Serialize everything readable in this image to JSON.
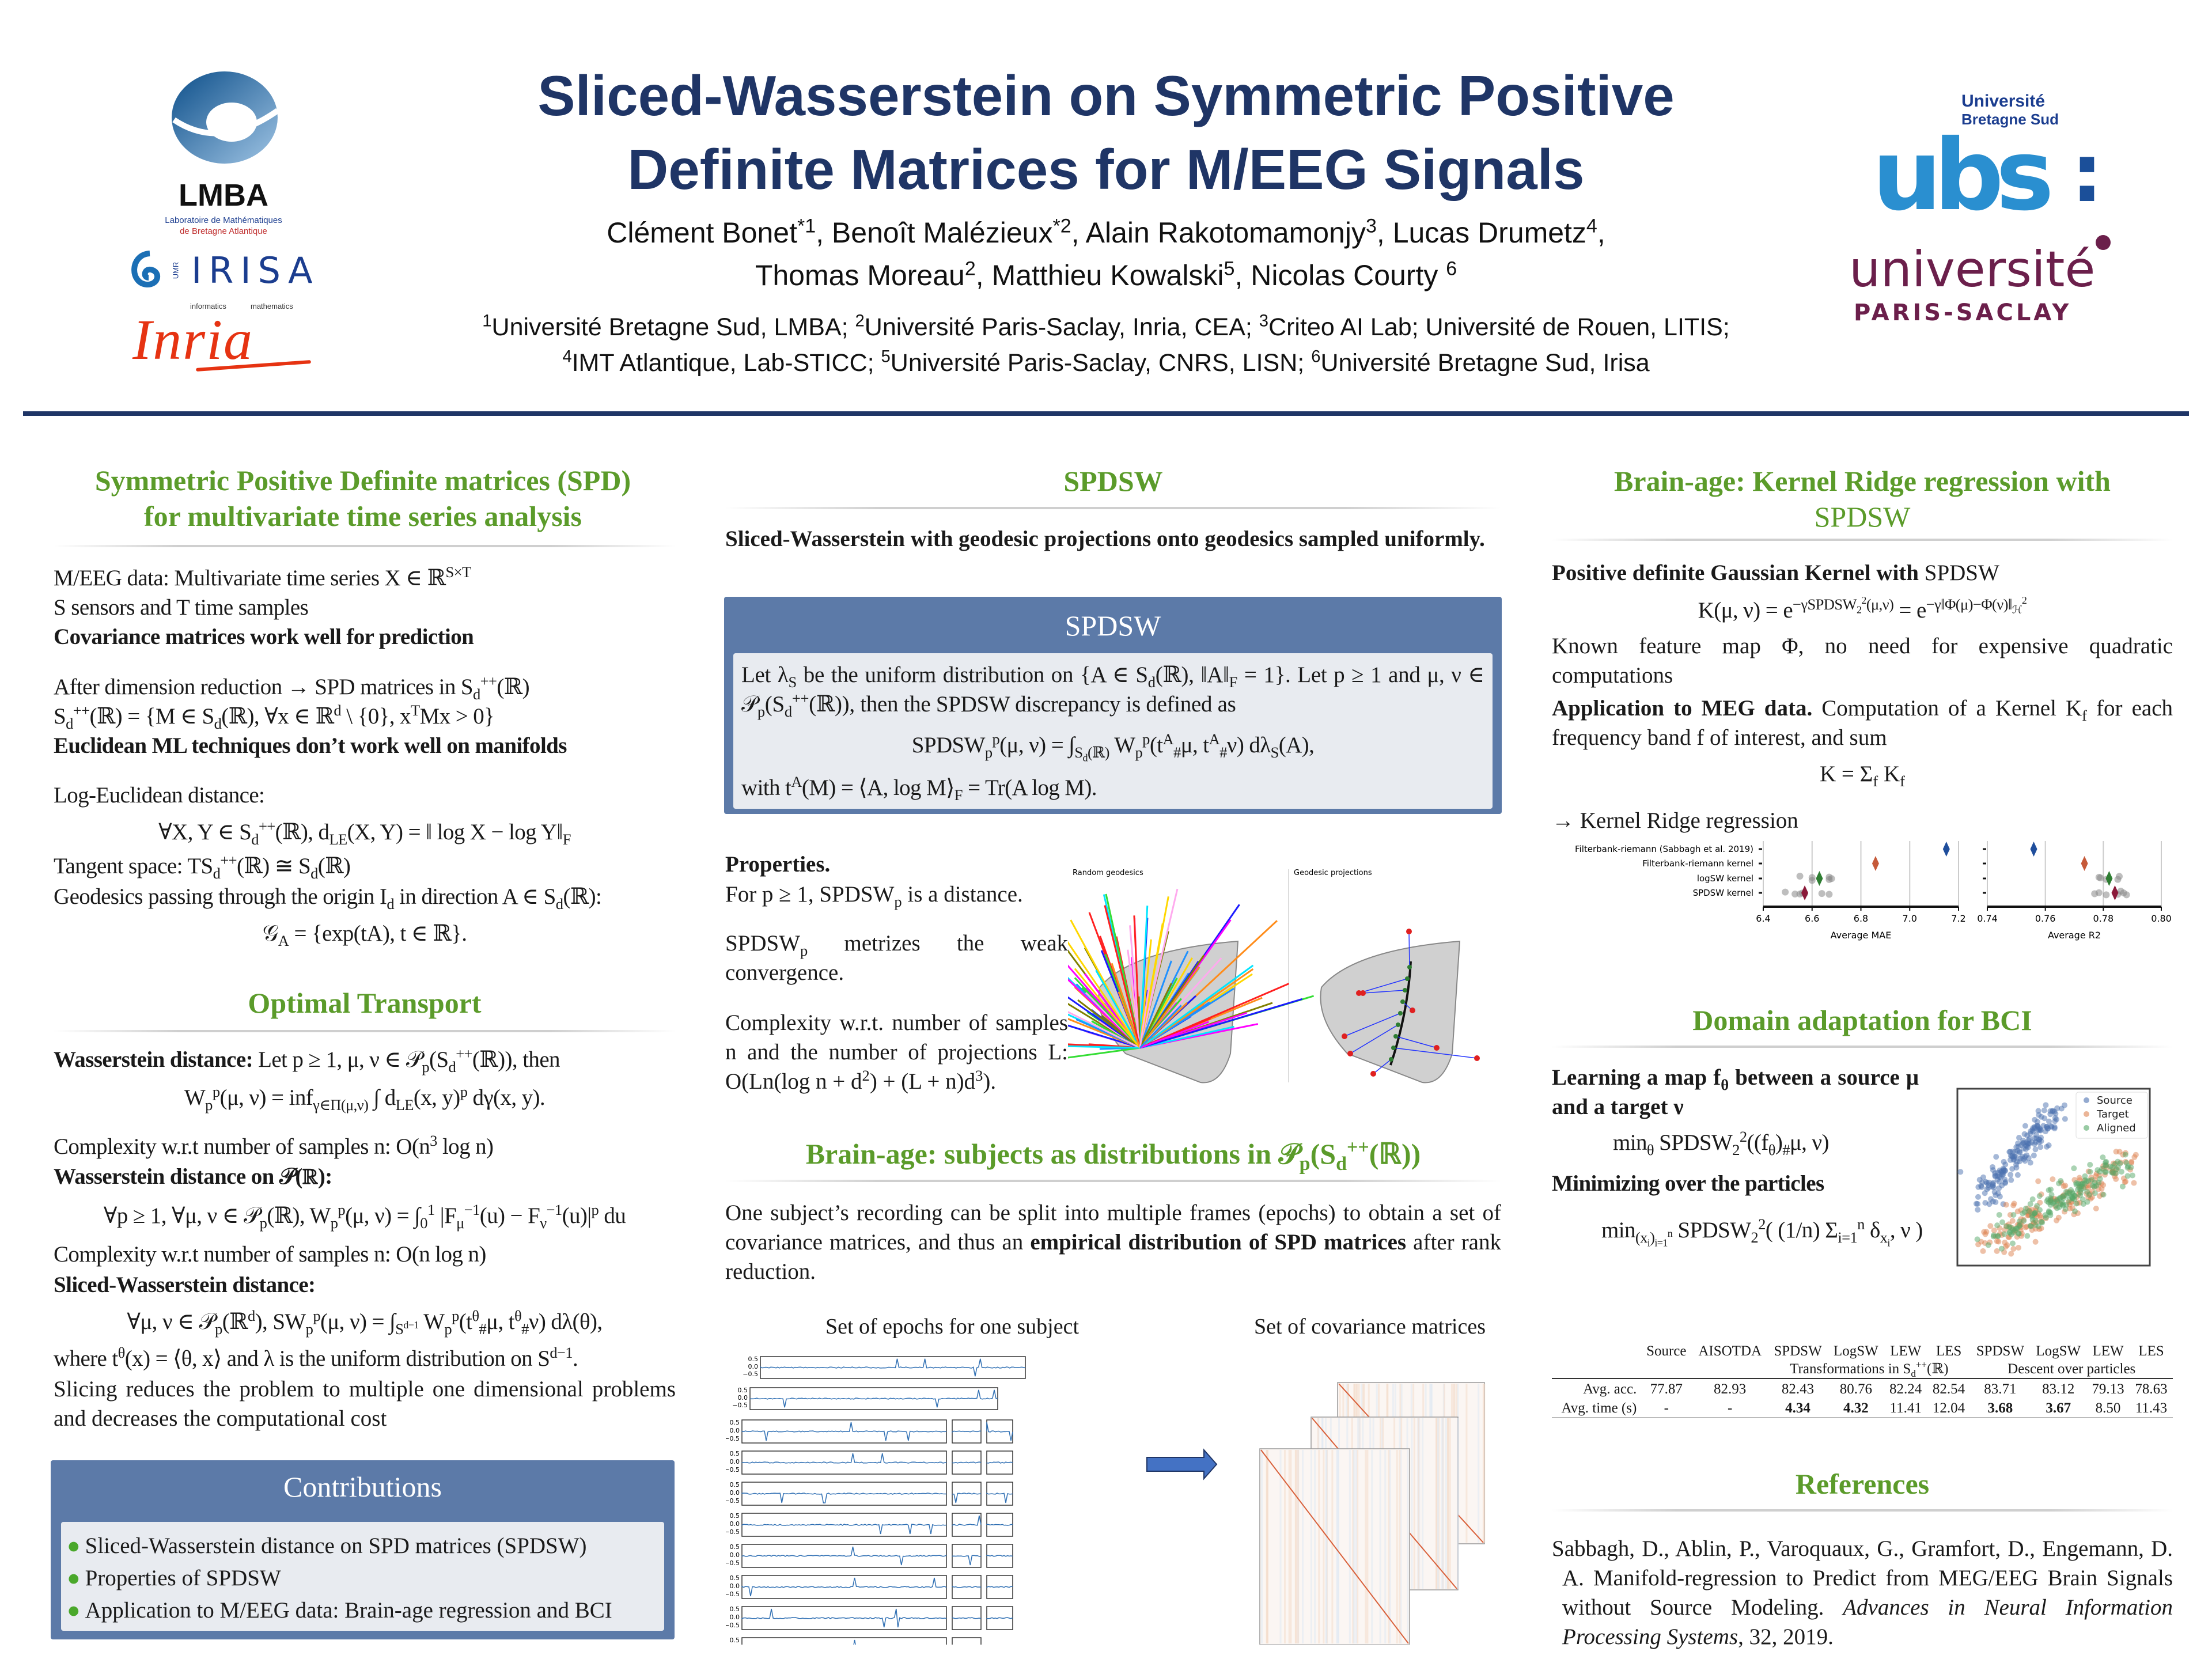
{
  "header": {
    "title_line1": "Sliced-Wasserstein on Symmetric Positive",
    "title_line2": "Definite Matrices for M/EEG Signals",
    "authors_line1": [
      {
        "name": "Clément Bonet",
        "sup": "*1",
        "sep": ", "
      },
      {
        "name": "Benoît Malézieux",
        "sup": "*2",
        "sep": ", "
      },
      {
        "name": "Alain Rakotomamonjy",
        "sup": "3",
        "sep": ", "
      },
      {
        "name": "Lucas Drumetz",
        "sup": "4",
        "sep": ","
      }
    ],
    "authors_line2": [
      {
        "name": "Thomas Moreau",
        "sup": "2",
        "sep": ", "
      },
      {
        "name": "Matthieu Kowalski",
        "sup": "5",
        "sep": ", "
      },
      {
        "name": "Nicolas Courty ",
        "sup": "6",
        "sep": ""
      }
    ],
    "affiliations_line1": [
      {
        "sup": "1",
        "text": "Université Bretagne Sud, LMBA; "
      },
      {
        "sup": "2",
        "text": "Université Paris-Saclay, Inria, CEA; "
      },
      {
        "sup": "3",
        "text": "Criteo AI Lab; Université de Rouen, LITIS;"
      }
    ],
    "affiliations_line2": [
      {
        "sup": "4",
        "text": "IMT Atlantique, Lab-STICC; "
      },
      {
        "sup": "5",
        "text": "Université Paris-Saclay, CNRS, LISN; "
      },
      {
        "sup": "6",
        "text": "Université Bretagne Sud, Irisa"
      }
    ]
  },
  "logos": {
    "lmba": {
      "name": "LMBA",
      "subtitle_1": "Laboratoire de Mathématiques",
      "subtitle_2": "de Bretagne Atlantique"
    },
    "irisa": {
      "name": "IRISA",
      "tag": "UMR"
    },
    "inria": {
      "name": "Inria",
      "tag_1": "informatics",
      "tag_2": "mathematics"
    },
    "ubs": {
      "line_1": "Université",
      "line_2": "Bretagne Sud",
      "mark": "ubs",
      "colon": ":"
    },
    "paris_saclay": {
      "line_1": "université",
      "line_2": "PARIS-SACLAY"
    },
    "colors": {
      "navy": "#1f3566",
      "ubs_light": "#3aaee0",
      "ubs_dark": "#1b5ea8",
      "saclay": "#6b1f4b",
      "inria": "#e63312"
    }
  },
  "colors": {
    "heading_green": "#5b9b2a",
    "box_blue": "#5c7aa8",
    "box_inner": "#e8ebf0",
    "title_navy": "#1f3566"
  },
  "col1": {
    "spd_heading_1": "Symmetric Positive Definite matrices (SPD)",
    "spd_heading_2": "for multivariate time series analysis",
    "spd_lines": [
      "M/EEG data: Multivariate time series X ∈ ℝ^{S×T}",
      "S sensors and T time samples",
      "**Covariance matrices work well for prediction**",
      "After dimension reduction → SPD matrices in S_{d}^{++}(ℝ)",
      "S_{d}^{++}(ℝ) = {M ∈ S_{d}(ℝ), ∀x ∈ ℝ^{d} \\ {0}, x^{T}Mx > 0}",
      "**Euclidean ML techniques don’t work well on manifolds**",
      "Log-Euclidean distance:",
      "∀X, Y ∈ S_{d}^{++}(ℝ),  d_{LE}(X, Y) = ‖ log X − log Y‖_{F}",
      "Tangent space: TS_{d}^{++}(ℝ) ≅ S_{d}(ℝ)",
      "Geodesics passing through the origin I_{d} in direction A ∈ S_{d}(ℝ):",
      "𝒢_{A} = {exp(tA),  t ∈ ℝ}."
    ],
    "ot_heading": "Optimal Transport",
    "ot_lines": [
      "**Wasserstein distance:** Let p ≥ 1, μ, ν ∈ 𝒫_{p}(S_{d}^{++}(ℝ)), then",
      "W_{p}^{p}(μ, ν) = inf_{γ∈Π(μ,ν)} ∫ d_{LE}(x, y)^{p} dγ(x, y).",
      "Complexity w.r.t number of samples n: O(n^{3} log n)",
      "**Wasserstein distance on 𝒫(ℝ):**",
      "∀p ≥ 1, ∀μ, ν ∈ 𝒫_{p}(ℝ),  W_{p}^{p}(μ, ν) = ∫_{0}^{1} |F_{μ}^{−1}(u) − F_{ν}^{−1}(u)|^{p} du",
      "Complexity w.r.t number of samples n: O(n log n)",
      "**Sliced-Wasserstein distance:**",
      "∀μ, ν ∈ 𝒫_{p}(ℝ^{d}),  SW_{p}^{p}(μ, ν) = ∫_{S^{d−1}} W_{p}^{p}(t^{θ}_{#}μ, t^{θ}_{#}ν) dλ(θ),",
      "where t^{θ}(x) = ⟨θ, x⟩ and λ is the uniform distribution on S^{d−1}.",
      "Slicing reduces the problem to multiple one dimensional problems and decreases the computational cost"
    ],
    "contributions": {
      "title": "Contributions",
      "items": [
        "Sliced-Wasserstein distance on SPD matrices (SPDSW)",
        "Properties of SPDSW",
        "Application to M/EEG data: Brain-age regression and BCI"
      ]
    }
  },
  "col2": {
    "spdsw_heading": "SPDSW",
    "spdsw_intro": "Sliced-Wasserstein with geodesic projections onto geodesics sampled uniformly.",
    "box": {
      "title": "SPDSW",
      "text_1": "Let λ_{S} be the uniform distribution on {A ∈ S_{d}(ℝ), ‖A‖_{F} = 1}. Let p ≥ 1 and μ, ν ∈ 𝒫_{p}(S_{d}^{++}(ℝ)), then the SPDSW discrepancy is defined as",
      "formula": "SPDSW_{p}^{p}(μ, ν) = ∫_{S_{d}(ℝ)} W_{p}^{p}(t^{A}_{#}μ, t^{A}_{#}ν) dλ_{S}(A),",
      "text_2": "with t^{A}(M) = ⟨A, log M⟩_{F} = Tr(A log M)."
    },
    "properties": {
      "title": "Properties.",
      "p1": "For p ≥ 1, SPDSW_{p} is a distance.",
      "p2": "SPDSW_{p} metrizes the weak convergence.",
      "p3": "Complexity w.r.t. number of samples n and the number of projections L: O(Ln(log n + d^{2}) + (L + n)d^{3})."
    },
    "geodesics_figure": {
      "left_label": "Random geodesics",
      "right_label": "Geodesic projections"
    },
    "brain_heading": "Brain-age: subjects as distributions in 𝒫_{p}(S_{d}^{++}(ℝ))",
    "brain_text": "One subject’s recording can be split into multiple frames (epochs) to obtain a set of covariance matrices, and thus an **empirical distribution of SPD matrices** after rank reduction.",
    "epochs_figure": {
      "left_label": "Set of epochs for one subject",
      "right_label": "Set of covariance matrices",
      "ticks": [
        "0.5",
        "0.0",
        "−0.5"
      ]
    }
  },
  "col3": {
    "krr_heading_1": "Brain-age: Kernel Ridge regression with",
    "krr_heading_2": "SPDSW",
    "kernel_title_bold": "Positive definite Gaussian Kernel with",
    "kernel_title_rest": " SPDSW",
    "kernel_formula": "K(μ, ν) = e^{−γSPDSW_{2}^{2}(μ,ν)} = e^{−γ‖Φ(μ)−Φ(ν)‖_{ℋ}^{2}}",
    "kernel_text": "Known feature map Φ, no need for expensive quadratic computations",
    "meg_text": "**Application to MEG data.** Computation of a Kernel K_{f} for each frequency band f of interest, and sum",
    "sum_formula": "K = Σ_{f} K_{f}",
    "krr_text": "→ Kernel Ridge regression",
    "da_heading": "Domain adaptation for BCI",
    "da_lines": [
      "**Learning a map f_{θ} between a source μ and a target ν**",
      "min_{θ}  SPDSW_{2}^{2}((f_{θ})_{#}μ, ν)",
      "**Minimizing over the particles**",
      "min_{(x_{i})_{i=1}^{n}}  SPDSW_{2}^{2}( (1/n) Σ_{i=1}^{n} δ_{x_{i}}, ν )"
    ],
    "da_figure": {
      "legend": [
        "Source",
        "Target",
        "Aligned"
      ],
      "colors": [
        "#4c72b0",
        "#dd8452",
        "#55a868"
      ]
    },
    "table": {
      "columns": [
        "",
        "Source",
        "AISOTDA",
        "SPDSW",
        "LogSW",
        "LEW",
        "LES",
        "SPDSW",
        "LogSW",
        "LEW",
        "LES"
      ],
      "group_1": "Transformations in S_{d}^{++}(ℝ)",
      "group_2": "Descent over particles",
      "rows": [
        {
          "label": "Avg. acc.",
          "values": [
            "77.87",
            "82.93",
            "82.43",
            "80.76",
            "82.24",
            "82.54",
            "83.71",
            "83.12",
            "79.13",
            "78.63"
          ],
          "bold": []
        },
        {
          "label": "Avg. time (s)",
          "values": [
            "-",
            "-",
            "4.34",
            "4.32",
            "11.41",
            "12.04",
            "3.68",
            "3.67",
            "8.50",
            "11.43"
          ],
          "bold": [
            2,
            3,
            6,
            7
          ]
        }
      ]
    },
    "ref_heading": "References",
    "reference": "Sabbagh, D., Ablin, P., Varoquaux, G., Gramfort, D., Engemann, D. A. Manifold-regression to Predict from MEG/EEG Brain Signals without Source Modeling. *Advances in Neural Information Processing Systems*, 32, 2019."
  },
  "chart_data": {
    "type": "scatter",
    "categories": [
      "Filterbank-riemann (Sabbagh et al. 2019)",
      "Filterbank-riemann kernel",
      "logSW kernel",
      "SPDSW kernel"
    ],
    "mean_colors": [
      "#1f4e9c",
      "#c65a3a",
      "#2e7d32",
      "#8b1a3a"
    ],
    "grid": "vertical",
    "panels": [
      {
        "xlabel": "Average MAE",
        "xlim": [
          6.4,
          7.2
        ],
        "ticks": [
          "6.4",
          "6.6",
          "6.8",
          "7.0",
          "7.2"
        ],
        "means": [
          7.15,
          6.86,
          6.63,
          6.57
        ],
        "points": [
          [],
          [],
          [
            6.55,
            6.6,
            6.6,
            6.67,
            6.67,
            6.68
          ],
          [
            6.49,
            6.53,
            6.55,
            6.56,
            6.57,
            6.64,
            6.67
          ]
        ]
      },
      {
        "xlabel": "Average R2",
        "xlim": [
          0.74,
          0.8
        ],
        "ticks": [
          "0.74",
          "0.76",
          "0.78",
          "0.80"
        ],
        "means": [
          0.756,
          0.7735,
          0.782,
          0.784
        ],
        "points": [
          [],
          [],
          [
            0.7785,
            0.779,
            0.781,
            0.785,
            0.7855
          ],
          [
            0.777,
            0.7785,
            0.781,
            0.785,
            0.786,
            0.787,
            0.788
          ]
        ]
      }
    ]
  }
}
